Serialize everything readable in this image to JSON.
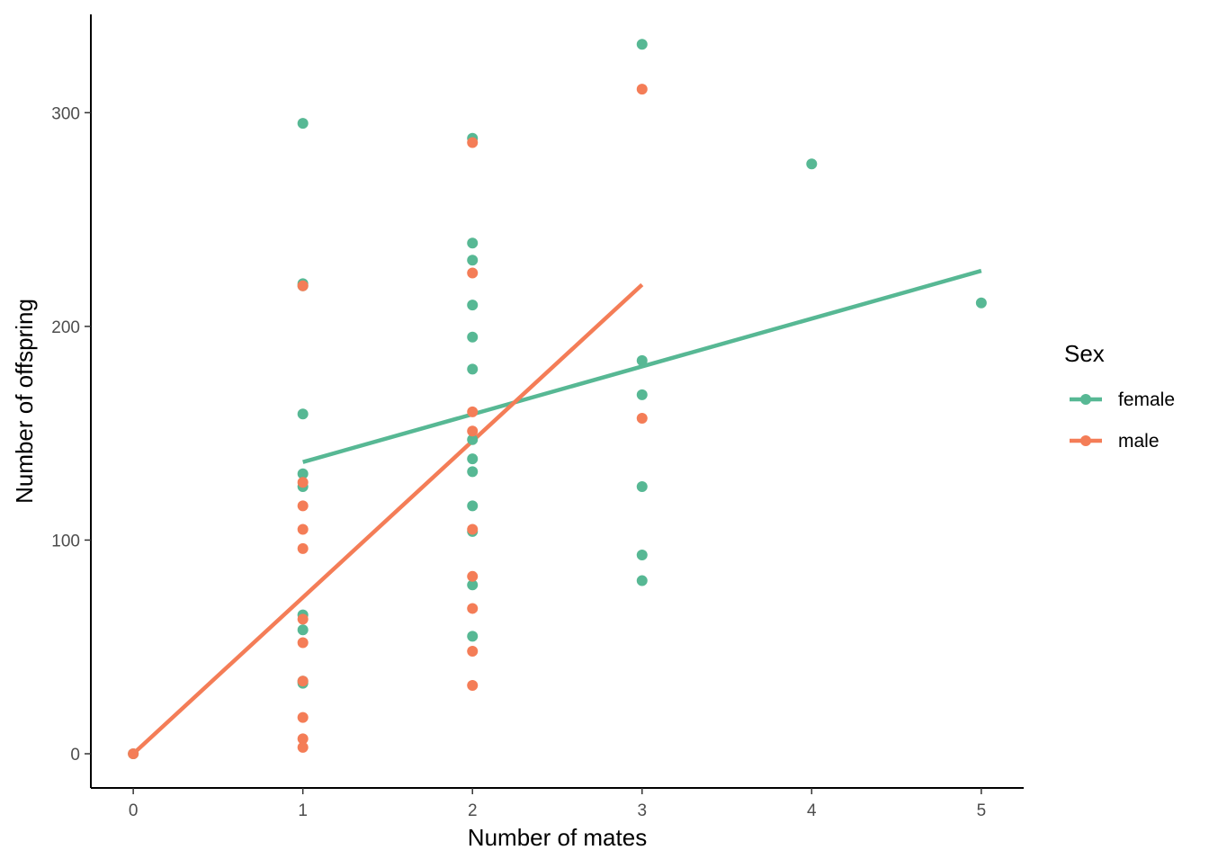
{
  "colors": {
    "female": "#57B894",
    "male": "#F47D57",
    "axis": "#000000",
    "tick_label": "#4d4d4d"
  },
  "chart_data": {
    "type": "scatter",
    "title": "",
    "xlabel": "Number of mates",
    "ylabel": "Number of offspring",
    "xlim": [
      -0.25,
      5.25
    ],
    "ylim": [
      -16,
      346
    ],
    "xticks": [
      0,
      1,
      2,
      3,
      4,
      5
    ],
    "yticks": [
      0,
      100,
      200,
      300
    ],
    "grid": false,
    "legend": {
      "title": "Sex",
      "placement": "right",
      "entries": [
        "female",
        "male"
      ]
    },
    "series": [
      {
        "name": "female",
        "color": "#57B894",
        "points": [
          [
            0,
            0
          ],
          [
            1,
            295
          ],
          [
            1,
            220
          ],
          [
            1,
            219
          ],
          [
            1,
            159
          ],
          [
            1,
            131
          ],
          [
            1,
            125
          ],
          [
            1,
            65
          ],
          [
            1,
            58
          ],
          [
            1,
            34
          ],
          [
            1,
            33
          ],
          [
            2,
            288
          ],
          [
            2,
            239
          ],
          [
            2,
            231
          ],
          [
            2,
            210
          ],
          [
            2,
            195
          ],
          [
            2,
            180
          ],
          [
            2,
            147
          ],
          [
            2,
            138
          ],
          [
            2,
            132
          ],
          [
            2,
            116
          ],
          [
            2,
            104
          ],
          [
            2,
            79
          ],
          [
            2,
            55
          ],
          [
            3,
            332
          ],
          [
            3,
            184
          ],
          [
            3,
            168
          ],
          [
            3,
            125
          ],
          [
            3,
            93
          ],
          [
            3,
            81
          ],
          [
            4,
            276
          ],
          [
            5,
            211
          ]
        ],
        "fit": {
          "x": [
            1,
            5
          ],
          "y": [
            136.5,
            226
          ]
        }
      },
      {
        "name": "male",
        "color": "#F47D57",
        "points": [
          [
            0,
            0
          ],
          [
            1,
            219
          ],
          [
            1,
            127
          ],
          [
            1,
            116
          ],
          [
            1,
            105
          ],
          [
            1,
            96
          ],
          [
            1,
            63
          ],
          [
            1,
            52
          ],
          [
            1,
            34
          ],
          [
            1,
            17
          ],
          [
            1,
            7
          ],
          [
            1,
            3
          ],
          [
            2,
            286
          ],
          [
            2,
            225
          ],
          [
            2,
            160
          ],
          [
            2,
            151
          ],
          [
            2,
            105
          ],
          [
            2,
            83
          ],
          [
            2,
            68
          ],
          [
            2,
            48
          ],
          [
            2,
            32
          ],
          [
            3,
            311
          ],
          [
            3,
            157
          ]
        ],
        "fit": {
          "x": [
            0,
            3
          ],
          "y": [
            0,
            219.5
          ]
        }
      }
    ]
  }
}
